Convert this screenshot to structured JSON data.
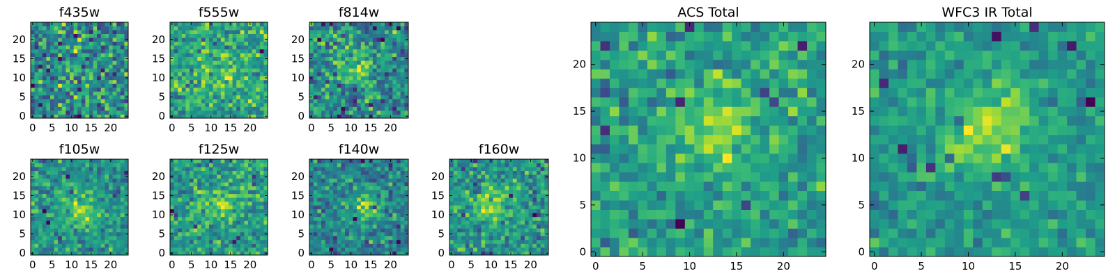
{
  "chart_data": [
    {
      "type": "heatmap",
      "title": "f435w",
      "grid_size": 25,
      "xlim": [
        0,
        24
      ],
      "ylim": [
        0,
        24
      ],
      "xticks": [
        "0",
        "5",
        "10",
        "15",
        "20"
      ],
      "yticks": [
        "0",
        "5",
        "10",
        "15",
        "20"
      ],
      "colormap": "viridis",
      "peak_center": [
        13,
        13
      ],
      "peak_strength": 0.0,
      "noise_level": 0.9,
      "seed": 101
    },
    {
      "type": "heatmap",
      "title": "f555w",
      "grid_size": 25,
      "xlim": [
        0,
        24
      ],
      "ylim": [
        0,
        24
      ],
      "xticks": [
        "0",
        "5",
        "10",
        "15",
        "20"
      ],
      "yticks": [
        "0",
        "5",
        "10",
        "15",
        "20"
      ],
      "colormap": "viridis",
      "peak_center": [
        12,
        12
      ],
      "peak_strength": 0.25,
      "noise_level": 0.85,
      "seed": 202
    },
    {
      "type": "heatmap",
      "title": "f814w",
      "grid_size": 25,
      "xlim": [
        0,
        24
      ],
      "ylim": [
        0,
        24
      ],
      "xticks": [
        "0",
        "5",
        "10",
        "15",
        "20"
      ],
      "yticks": [
        "0",
        "5",
        "10",
        "15",
        "20"
      ],
      "colormap": "viridis",
      "peak_center": [
        11,
        13
      ],
      "peak_strength": 0.45,
      "noise_level": 0.8,
      "seed": 303
    },
    {
      "type": "heatmap",
      "title": "f105w",
      "grid_size": 25,
      "xlim": [
        0,
        24
      ],
      "ylim": [
        0,
        24
      ],
      "xticks": [
        "0",
        "5",
        "10",
        "15",
        "20"
      ],
      "yticks": [
        "0",
        "5",
        "10",
        "15",
        "20"
      ],
      "colormap": "viridis",
      "peak_center": [
        12,
        11
      ],
      "peak_strength": 0.55,
      "noise_level": 0.7,
      "seed": 404
    },
    {
      "type": "heatmap",
      "title": "f125w",
      "grid_size": 25,
      "xlim": [
        0,
        24
      ],
      "ylim": [
        0,
        24
      ],
      "xticks": [
        "0",
        "5",
        "10",
        "15",
        "20"
      ],
      "yticks": [
        "0",
        "5",
        "10",
        "15",
        "20"
      ],
      "colormap": "viridis",
      "peak_center": [
        12,
        12
      ],
      "peak_strength": 0.4,
      "noise_level": 0.75,
      "seed": 505
    },
    {
      "type": "heatmap",
      "title": "f140w",
      "grid_size": 25,
      "xlim": [
        0,
        24
      ],
      "ylim": [
        0,
        24
      ],
      "xticks": [
        "0",
        "5",
        "10",
        "15",
        "20"
      ],
      "yticks": [
        "0",
        "5",
        "10",
        "15",
        "20"
      ],
      "colormap": "viridis",
      "peak_center": [
        13,
        12
      ],
      "peak_strength": 0.45,
      "noise_level": 0.75,
      "seed": 606
    },
    {
      "type": "heatmap",
      "title": "f160w",
      "grid_size": 25,
      "xlim": [
        0,
        24
      ],
      "ylim": [
        0,
        24
      ],
      "xticks": [
        "0",
        "5",
        "10",
        "15",
        "20"
      ],
      "yticks": [
        "0",
        "5",
        "10",
        "15",
        "20"
      ],
      "colormap": "viridis",
      "peak_center": [
        10,
        12
      ],
      "peak_strength": 0.45,
      "noise_level": 0.75,
      "seed": 707
    },
    {
      "type": "heatmap",
      "title": "ACS Total",
      "grid_size": 25,
      "xlim": [
        0,
        24
      ],
      "ylim": [
        0,
        24
      ],
      "xticks": [
        "0",
        "5",
        "10",
        "15",
        "20"
      ],
      "yticks": [
        "0",
        "5",
        "10",
        "15",
        "20"
      ],
      "colormap": "viridis",
      "peak_center": [
        13,
        13
      ],
      "peak_strength": 0.45,
      "noise_level": 0.75,
      "seed": 808
    },
    {
      "type": "heatmap",
      "title": "WFC3 IR Total",
      "grid_size": 25,
      "xlim": [
        0,
        24
      ],
      "ylim": [
        0,
        24
      ],
      "xticks": [
        "0",
        "5",
        "10",
        "15",
        "20"
      ],
      "yticks": [
        "0",
        "5",
        "10",
        "15",
        "20"
      ],
      "colormap": "viridis",
      "peak_center": [
        12,
        13
      ],
      "peak_strength": 0.6,
      "noise_level": 0.55,
      "seed": 909
    }
  ]
}
